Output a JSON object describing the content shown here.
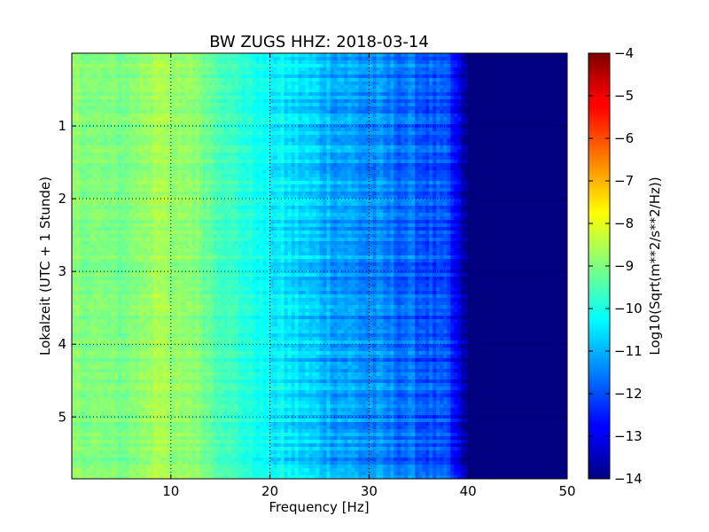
{
  "chart_data": {
    "type": "heatmap",
    "title": "BW ZUGS HHZ: 2018-03-14",
    "xlabel": "Frequency [Hz]",
    "ylabel": "Lokalzeit (UTC + 1 Stunde)",
    "xlim": [
      0,
      50
    ],
    "ylim": [
      5.85,
      0
    ],
    "x_ticks": [
      10,
      20,
      30,
      40,
      50
    ],
    "x_tick_labels": [
      "10",
      "20",
      "30",
      "40",
      "50"
    ],
    "y_ticks": [
      1,
      2,
      3,
      4,
      5
    ],
    "y_tick_labels": [
      "1",
      "2",
      "3",
      "4",
      "5"
    ],
    "grid": true,
    "colormap": "jet",
    "colorbar": {
      "label": "Log10(Sqrt(m**2/s**2/Hz))",
      "range": [
        -14,
        -4
      ],
      "ticks": [
        -4,
        -5,
        -6,
        -7,
        -8,
        -9,
        -10,
        -11,
        -12,
        -13,
        -14
      ],
      "tick_labels": [
        "−4",
        "−5",
        "−6",
        "−7",
        "−8",
        "−9",
        "−10",
        "−11",
        "−12",
        "−13",
        "−14"
      ]
    },
    "spectral_profile": {
      "frequency_hz": [
        0,
        5,
        8,
        8.5,
        10,
        12,
        15,
        20,
        25,
        30,
        35,
        38,
        40,
        50
      ],
      "log_amplitude": [
        -8.9,
        -9.1,
        -8.7,
        -8.4,
        -8.9,
        -8.8,
        -9.5,
        -10.3,
        -10.9,
        -11.4,
        -11.8,
        -12.2,
        -14,
        -14
      ]
    }
  }
}
